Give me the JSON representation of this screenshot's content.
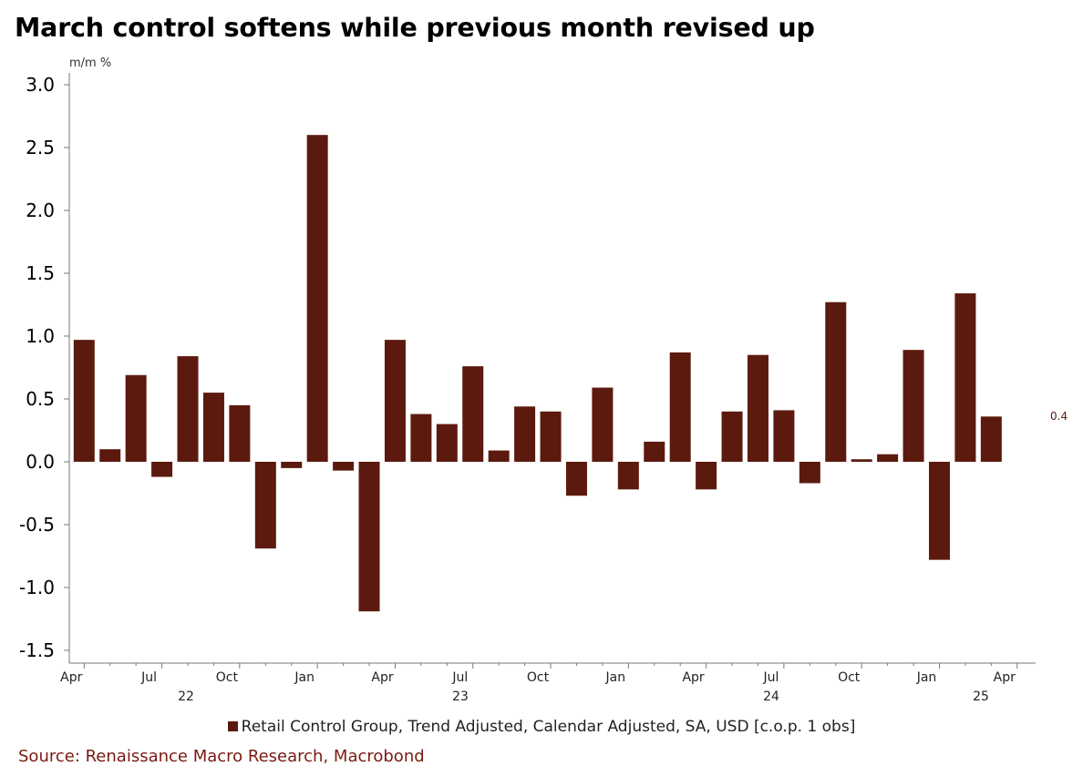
{
  "title": "March control softens while previous month revised up",
  "source": "Source: Renaissance Macro Research, Macrobond",
  "colors": {
    "bar": "#5c1a0e",
    "axis": "#777777",
    "last_label": "#5c1a0e"
  },
  "chart_data": {
    "type": "bar",
    "unit_label": "m/m %",
    "ylim": [
      -1.5,
      3.0
    ],
    "yticks": [
      "3.0",
      "2.5",
      "2.0",
      "1.5",
      "1.0",
      "0.5",
      "0.0",
      "-0.5",
      "-1.0",
      "-1.5"
    ],
    "ytick_values": [
      3.0,
      2.5,
      2.0,
      1.5,
      1.0,
      0.5,
      0.0,
      -0.5,
      -1.0,
      -1.5
    ],
    "grid": false,
    "legend_position": "bottom",
    "categories": [
      "2022-04",
      "2022-05",
      "2022-06",
      "2022-07",
      "2022-08",
      "2022-09",
      "2022-10",
      "2022-11",
      "2022-12",
      "2023-01",
      "2023-02",
      "2023-03",
      "2023-04",
      "2023-05",
      "2023-06",
      "2023-07",
      "2023-08",
      "2023-09",
      "2023-10",
      "2023-11",
      "2023-12",
      "2024-01",
      "2024-02",
      "2024-03",
      "2024-04",
      "2024-05",
      "2024-06",
      "2024-07",
      "2024-08",
      "2024-09",
      "2024-10",
      "2024-11",
      "2024-12",
      "2025-01",
      "2025-02",
      "2025-03"
    ],
    "series": [
      {
        "name": "Retail Control Group, Trend Adjusted, Calendar Adjusted, SA, USD [c.o.p. 1 obs]",
        "values": [
          0.97,
          0.1,
          0.69,
          -0.12,
          0.84,
          0.55,
          0.45,
          -0.69,
          -0.05,
          2.6,
          -0.07,
          -1.19,
          0.97,
          0.38,
          0.3,
          0.76,
          0.09,
          0.44,
          0.4,
          -0.27,
          0.59,
          -0.22,
          0.16,
          0.87,
          -0.22,
          0.4,
          0.85,
          0.41,
          -0.17,
          1.27,
          0.02,
          0.06,
          0.89,
          -0.78,
          1.34,
          0.36
        ]
      }
    ],
    "last_value_label": "0.4",
    "xtick_labels": [
      "Apr",
      "Jul",
      "Oct",
      "Jan",
      "Apr",
      "Jul",
      "Oct",
      "Jan",
      "Apr",
      "Jul",
      "Oct",
      "Jan",
      "Apr"
    ],
    "year_labels": [
      "22",
      "23",
      "24",
      "25"
    ]
  }
}
